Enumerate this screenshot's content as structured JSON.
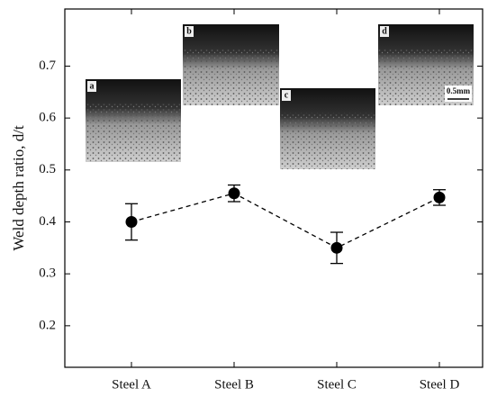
{
  "chart_data": {
    "type": "line",
    "ylabel": "Weld depth ratio, d/t",
    "categories": [
      "Steel A",
      "Steel B",
      "Steel C",
      "Steel D"
    ],
    "series": [
      {
        "color": "#000000",
        "values": [
          0.4,
          0.455,
          0.35,
          0.447
        ],
        "error": [
          0.035,
          0.016,
          0.03,
          0.015
        ]
      }
    ],
    "ylim": [
      0.12,
      0.81
    ],
    "yticks": [
      0.2,
      0.3,
      0.4,
      0.5,
      0.6,
      0.7
    ],
    "line_style": "dashed",
    "insets": [
      {
        "label": "a"
      },
      {
        "label": "b"
      },
      {
        "label": "c"
      },
      {
        "label": "d"
      }
    ],
    "scale_bar": "0.5mm"
  }
}
